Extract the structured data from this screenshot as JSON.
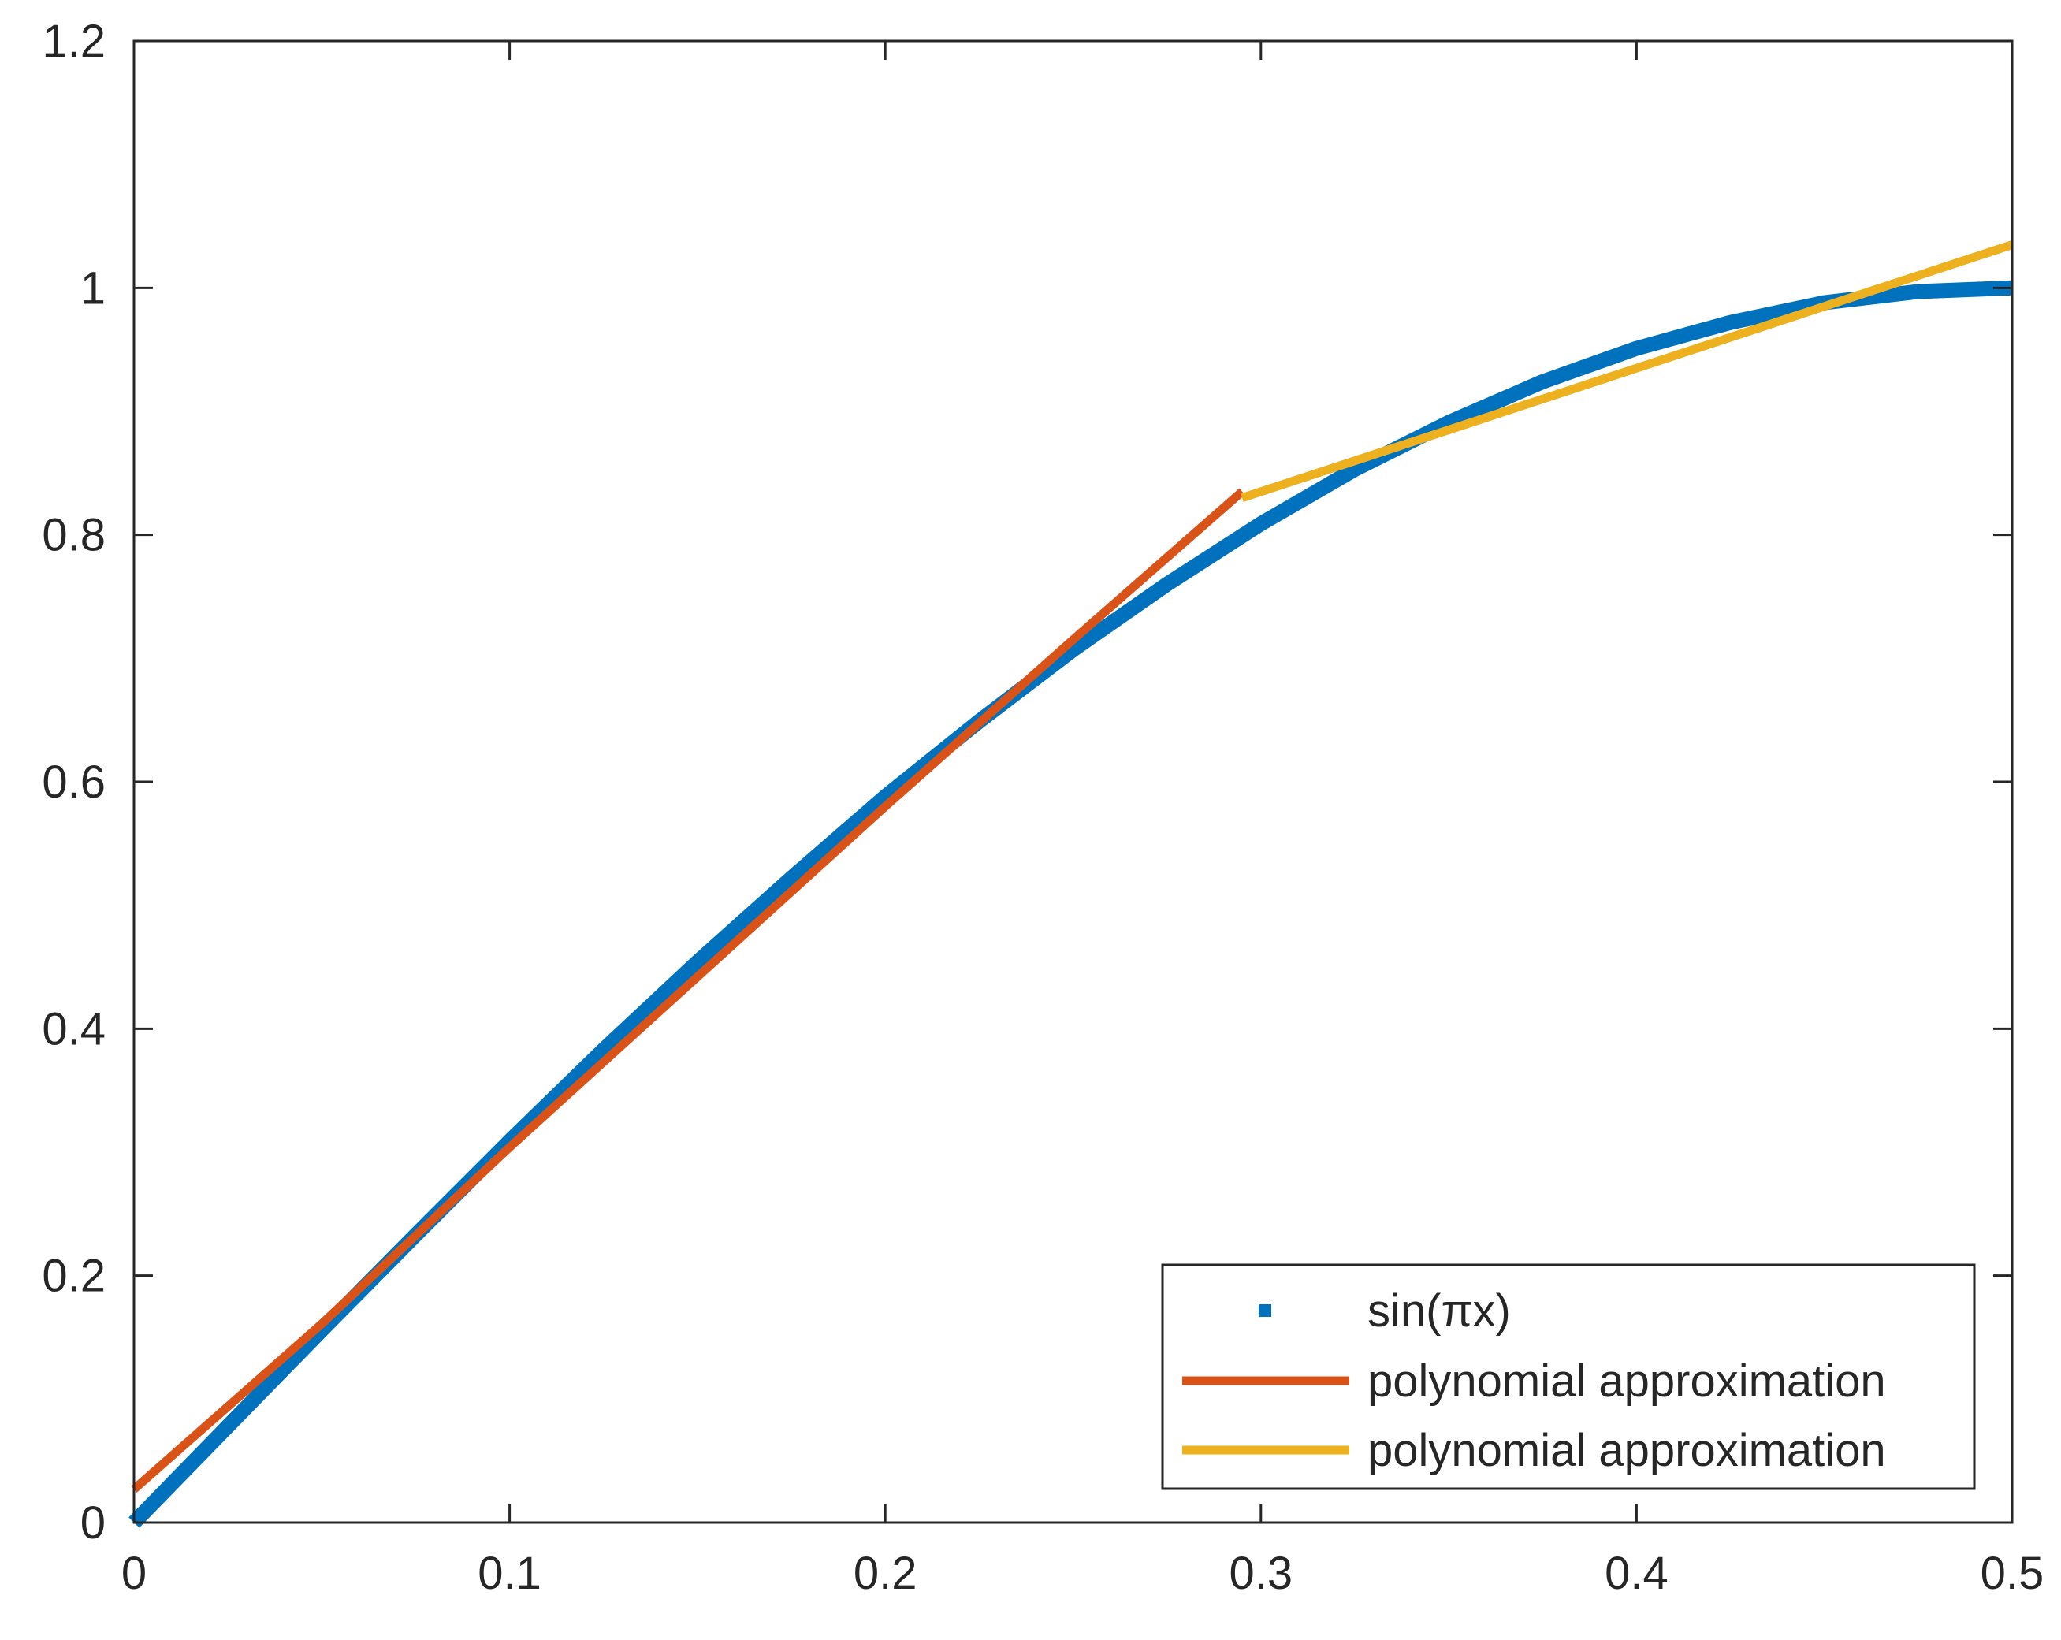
{
  "chart_data": {
    "type": "line",
    "title": "",
    "xlabel": "",
    "ylabel": "",
    "xlim": [
      0,
      0.5
    ],
    "ylim": [
      0,
      1.2
    ],
    "x_ticks": [
      "0",
      "0.1",
      "0.2",
      "0.3",
      "0.4",
      "0.5"
    ],
    "y_ticks": [
      "0",
      "0.2",
      "0.4",
      "0.6",
      "0.8",
      "1",
      "1.2"
    ],
    "grid": false,
    "legend_position": "bottom-right",
    "series": [
      {
        "name": "sin(πx)",
        "style": "thick-dotted",
        "color": "#0072BD",
        "x": [
          0,
          0.025,
          0.05,
          0.075,
          0.1,
          0.125,
          0.15,
          0.175,
          0.2,
          0.225,
          0.25,
          0.275,
          0.3,
          0.325,
          0.35,
          0.375,
          0.4,
          0.425,
          0.45,
          0.475,
          0.5
        ],
        "y": [
          0,
          0.078,
          0.156,
          0.233,
          0.309,
          0.383,
          0.454,
          0.522,
          0.588,
          0.649,
          0.707,
          0.76,
          0.809,
          0.853,
          0.891,
          0.924,
          0.951,
          0.972,
          0.988,
          0.997,
          1.0
        ]
      },
      {
        "name": "polynomial approximation",
        "style": "solid",
        "color": "#D95319",
        "x": [
          0,
          0.05,
          0.1,
          0.15,
          0.2,
          0.25,
          0.295
        ],
        "y": [
          0.027,
          0.161,
          0.304,
          0.442,
          0.58,
          0.715,
          0.835
        ]
      },
      {
        "name": "polynomial approximation",
        "style": "solid",
        "color": "#EDB120",
        "x": [
          0.295,
          0.35,
          0.4,
          0.45,
          0.5
        ],
        "y": [
          0.83,
          0.885,
          0.935,
          0.985,
          1.035
        ]
      }
    ]
  }
}
